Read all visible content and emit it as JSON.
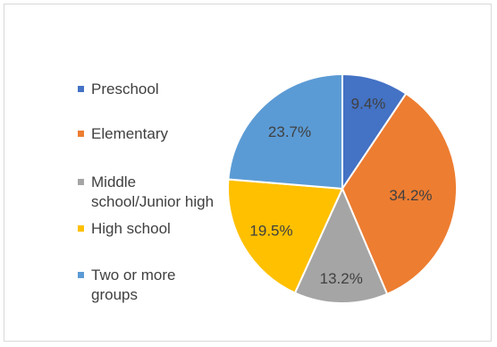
{
  "chart_data": {
    "type": "pie",
    "title": "",
    "categories": [
      "Preschool",
      "Elementary",
      "Middle school/Junior high",
      "High school",
      "Two or more groups"
    ],
    "legend_lines": [
      [
        "Preschool"
      ],
      [
        "Elementary"
      ],
      [
        "Middle",
        "school/Junior high"
      ],
      [
        "High school"
      ],
      [
        "Two or more",
        "groups"
      ]
    ],
    "values": [
      9.4,
      34.2,
      13.2,
      19.5,
      23.7
    ],
    "value_labels": [
      "9.4%",
      "34.2%",
      "13.2%",
      "19.5%",
      "23.7%"
    ],
    "colors": [
      "#4472c4",
      "#ed7d31",
      "#a5a5a5",
      "#ffc000",
      "#5b9bd5"
    ],
    "legend_position": "left",
    "start_angle": "top, clockwise"
  }
}
